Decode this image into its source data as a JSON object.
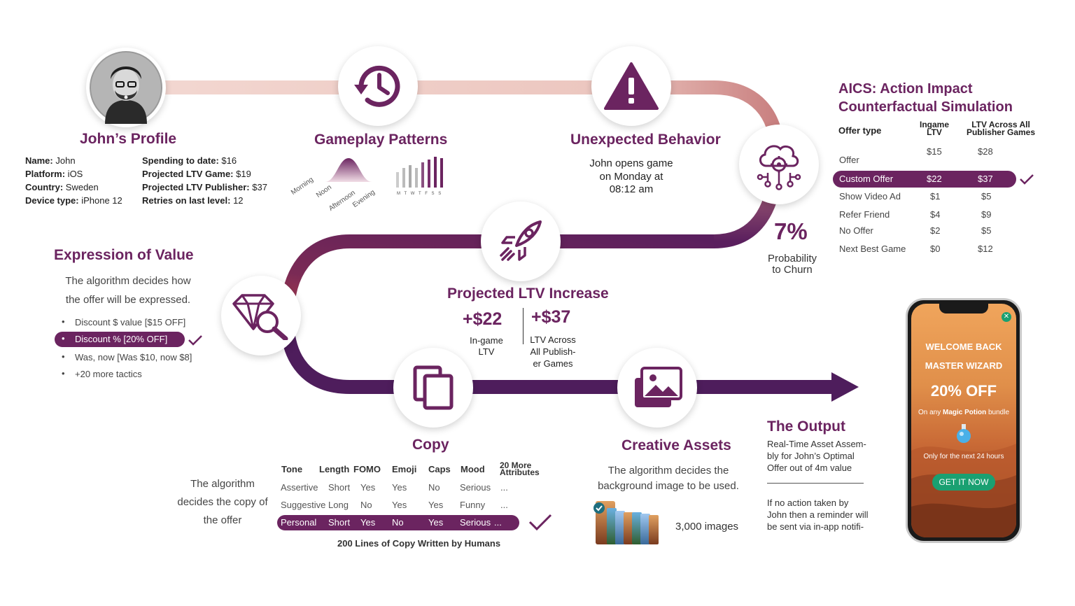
{
  "profile": {
    "title": "John’s Profile",
    "left": [
      {
        "label": "Name:",
        "value": " John"
      },
      {
        "label": "Platform:",
        "value": " iOS"
      },
      {
        "label": "Country:",
        "value": " Sweden"
      },
      {
        "label": "Device type:",
        "value": " iPhone 12"
      }
    ],
    "right": [
      {
        "label": "Spending to date:",
        "value": " $16"
      },
      {
        "label": "Projected LTV Game:",
        "value": " $19"
      },
      {
        "label": "Projected LTV Publisher:",
        "value": " $37"
      },
      {
        "label": "Retries on last level:",
        "value": " 12"
      }
    ]
  },
  "gameplay": {
    "title": "Gameplay Patterns",
    "times": [
      "Morning",
      "Noon",
      "Afternoon",
      "Evening"
    ],
    "days": "M T W T F S S"
  },
  "unexpected": {
    "title": "Unexpected Behavior",
    "lines": [
      "John opens game",
      "on Monday at",
      "08:12 am"
    ]
  },
  "churn": {
    "value": "7%",
    "label1": "Probability",
    "label2": "to Churn"
  },
  "aics": {
    "title1": "AICS: Action Impact",
    "title2": "Counterfactual Simulation",
    "col1": "Offer type",
    "col2a": "Ingame",
    "col2b": "LTV",
    "col3a": "LTV Across All",
    "col3b": "Publisher Games",
    "rows": [
      {
        "name": "Offer",
        "ingame": "$15",
        "all": "$28"
      },
      {
        "name": "Custom Offer",
        "ingame": "$22",
        "all": "$37"
      },
      {
        "name": "Show Video Ad",
        "ingame": "$1",
        "all": "$5"
      },
      {
        "name": "Refer Friend",
        "ingame": "$4",
        "all": "$9"
      },
      {
        "name": "No Offer",
        "ingame": "$2",
        "all": "$5"
      },
      {
        "name": "Next Best Game",
        "ingame": "$0",
        "all": "$12"
      }
    ]
  },
  "expression": {
    "title": "Expression of Value",
    "desc1": "The algorithm decides how",
    "desc2": "the offer will be expressed.",
    "items": [
      "Discount $ value [$15 OFF]",
      "Discount % [20% OFF]",
      "Was, now [Was $10, now $8]",
      "+20 more tactics"
    ]
  },
  "ltv": {
    "title": "Projected LTV Increase",
    "ingame_value": "+$22",
    "ingame_label1": "In-game",
    "ingame_label2": "LTV",
    "all_value": "+$37",
    "all_label1": "LTV Across",
    "all_label2": "All Publish-",
    "all_label3": "er Games"
  },
  "copy": {
    "title": "Copy",
    "side1": "The algorithm",
    "side2": "decides the copy of",
    "side3": "the offer",
    "headers": [
      "Tone",
      "Length",
      "FOMO",
      "Emoji",
      "Caps",
      "Mood"
    ],
    "more1": "20 More",
    "more2": "Attributes",
    "rows": [
      [
        "Assertive",
        "Short",
        "Yes",
        "Yes",
        "No",
        "Serious",
        "..."
      ],
      [
        "Suggestive",
        "Long",
        "No",
        "Yes",
        "Yes",
        "Funny",
        "..."
      ],
      [
        "Personal",
        "Short",
        "Yes",
        "No",
        "Yes",
        "Serious",
        "..."
      ]
    ],
    "footer": "200 Lines of Copy Written by Humans"
  },
  "creative": {
    "title": "Creative Assets",
    "desc1": "The algorithm decides the",
    "desc2": "background image to be used.",
    "count": "3,000 images"
  },
  "output": {
    "title": "The Output",
    "desc1": "Real-Time Asset Assem-",
    "desc2": "bly for John’s Optimal",
    "desc3": "Offer out of 4m value",
    "note1": "If no action taken by",
    "note2": "John then a reminder will",
    "note3": "be sent via in-app notifi-"
  },
  "phone": {
    "line1": "WELCOME BACK",
    "line2": "MASTER WIZARD",
    "offer": "20% OFF",
    "sub_prefix": "On any ",
    "sub_bold": "Magic Potion",
    "sub_suffix": " bundle",
    "timer": "Only for the next 24 hours",
    "cta": "GET IT NOW"
  },
  "colors": {
    "accent": "#6b2460",
    "pink": "#efcfc9",
    "green": "#1aa071"
  }
}
